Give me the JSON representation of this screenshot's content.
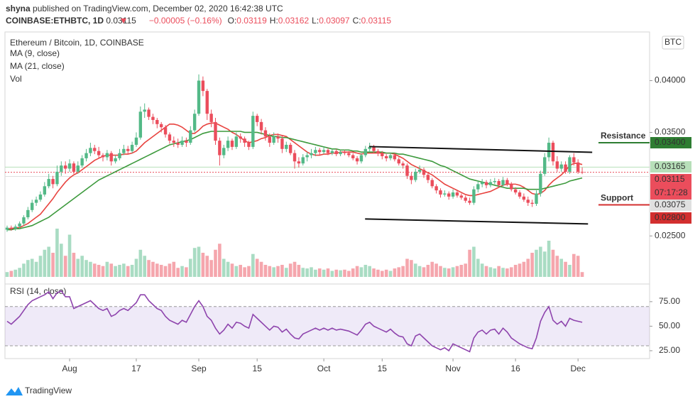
{
  "header": {
    "user": "shyna",
    "published": "published on TradingView.com, December 02, 2020 16:42:38 UTC",
    "symbol": "COINBASE:ETHBTC, 1D",
    "last": "0.03115",
    "change": "−0.00005 (−0.16%)",
    "ohlc": [
      {
        "key": "O:",
        "value": "0.03119"
      },
      {
        "key": "H:",
        "value": "0.03162"
      },
      {
        "key": "L:",
        "value": "0.03097"
      },
      {
        "key": "C:",
        "value": "0.03115"
      }
    ]
  },
  "footer": {
    "brand": "TradingView"
  },
  "chart_data": {
    "type": "candlestick",
    "title": "Ethereum / Bitcoin, 1D, COINBASE",
    "currency": "BTC",
    "up_color": "#53b987",
    "down_color": "#eb4d5c",
    "open": [
      0.0256,
      0.0258,
      0.0257,
      0.0259,
      0.0262,
      0.0268,
      0.0275,
      0.0282,
      0.0285,
      0.029,
      0.0298,
      0.0305,
      0.03,
      0.0312,
      0.0318,
      0.0315,
      0.032,
      0.0312,
      0.0318,
      0.0325,
      0.033,
      0.0335,
      0.0332,
      0.0328,
      0.0326,
      0.033,
      0.0322,
      0.0325,
      0.033,
      0.0334,
      0.0332,
      0.0338,
      0.0345,
      0.037,
      0.0372,
      0.0365,
      0.0362,
      0.0358,
      0.0355,
      0.0348,
      0.0342,
      0.034,
      0.0338,
      0.0342,
      0.034,
      0.0352,
      0.0368,
      0.04,
      0.039,
      0.0368,
      0.036,
      0.0342,
      0.0328,
      0.0335,
      0.0342,
      0.0336,
      0.0346,
      0.0344,
      0.034,
      0.0336,
      0.0366,
      0.036,
      0.0352,
      0.0346,
      0.034,
      0.0346,
      0.0344,
      0.0334,
      0.0338,
      0.033,
      0.0322,
      0.032,
      0.0326,
      0.0328,
      0.033,
      0.0333,
      0.0331,
      0.0333,
      0.033,
      0.0332,
      0.0329,
      0.0331,
      0.033,
      0.0328,
      0.0325,
      0.0322,
      0.0328,
      0.0334,
      0.0336,
      0.0332,
      0.033,
      0.0327,
      0.0325,
      0.0328,
      0.0324,
      0.032,
      0.0318,
      0.0308,
      0.0304,
      0.0312,
      0.0314,
      0.0309,
      0.0304,
      0.0298,
      0.0294,
      0.029,
      0.0291,
      0.0288,
      0.0292,
      0.0289,
      0.0287,
      0.0284,
      0.0282,
      0.0295,
      0.03,
      0.0302,
      0.0299,
      0.0302,
      0.0303,
      0.0299,
      0.0304,
      0.03,
      0.0295,
      0.0292,
      0.0288,
      0.0285,
      0.0282,
      0.0281,
      0.0291,
      0.031,
      0.0326,
      0.034,
      0.0322,
      0.0315,
      0.0319,
      0.0312,
      0.0326,
      0.0321,
      0.03119
    ],
    "high": [
      0.026,
      0.026,
      0.0261,
      0.0264,
      0.027,
      0.0278,
      0.0285,
      0.0288,
      0.0293,
      0.0302,
      0.031,
      0.0308,
      0.0318,
      0.0322,
      0.0322,
      0.0324,
      0.0322,
      0.0322,
      0.0328,
      0.0334,
      0.034,
      0.0338,
      0.0336,
      0.033,
      0.0333,
      0.0332,
      0.0328,
      0.0334,
      0.0338,
      0.0337,
      0.0341,
      0.035,
      0.0375,
      0.0378,
      0.0374,
      0.0368,
      0.0364,
      0.036,
      0.0357,
      0.035,
      0.0346,
      0.0344,
      0.0346,
      0.0345,
      0.0356,
      0.0372,
      0.0406,
      0.0404,
      0.0392,
      0.0372,
      0.0364,
      0.0345,
      0.0338,
      0.0346,
      0.0344,
      0.035,
      0.0349,
      0.0346,
      0.0342,
      0.037,
      0.0368,
      0.0363,
      0.0355,
      0.0349,
      0.035,
      0.0349,
      0.0347,
      0.0341,
      0.034,
      0.0333,
      0.0326,
      0.0329,
      0.0331,
      0.0334,
      0.0336,
      0.0335,
      0.0336,
      0.0335,
      0.0334,
      0.0334,
      0.0333,
      0.0333,
      0.0332,
      0.033,
      0.0327,
      0.033,
      0.0337,
      0.034,
      0.0338,
      0.0334,
      0.0332,
      0.0329,
      0.033,
      0.033,
      0.0326,
      0.0322,
      0.032,
      0.0311,
      0.0315,
      0.0318,
      0.0316,
      0.0311,
      0.0306,
      0.03,
      0.0296,
      0.0294,
      0.0293,
      0.0295,
      0.0294,
      0.0291,
      0.0289,
      0.0287,
      0.0298,
      0.0303,
      0.0305,
      0.0304,
      0.0305,
      0.0306,
      0.0305,
      0.0307,
      0.0306,
      0.0302,
      0.0297,
      0.0294,
      0.0291,
      0.0288,
      0.0285,
      0.0294,
      0.0313,
      0.033,
      0.0345,
      0.0342,
      0.0327,
      0.0322,
      0.0322,
      0.0328,
      0.033,
      0.0324,
      0.03162
    ],
    "low": [
      0.0254,
      0.0255,
      0.0255,
      0.0257,
      0.026,
      0.0266,
      0.0273,
      0.0279,
      0.0283,
      0.0288,
      0.0296,
      0.0296,
      0.0298,
      0.0308,
      0.031,
      0.0312,
      0.031,
      0.031,
      0.0316,
      0.0322,
      0.0327,
      0.0329,
      0.0325,
      0.0322,
      0.0323,
      0.0318,
      0.032,
      0.0323,
      0.0328,
      0.0329,
      0.033,
      0.0336,
      0.0343,
      0.0364,
      0.0362,
      0.0358,
      0.0354,
      0.035,
      0.0345,
      0.0339,
      0.0336,
      0.0335,
      0.0336,
      0.0336,
      0.0338,
      0.035,
      0.0366,
      0.0385,
      0.0362,
      0.0355,
      0.0338,
      0.0318,
      0.0325,
      0.0332,
      0.0333,
      0.0334,
      0.034,
      0.0336,
      0.0333,
      0.0334,
      0.0356,
      0.0348,
      0.0342,
      0.0336,
      0.0338,
      0.034,
      0.033,
      0.0331,
      0.0328,
      0.0315,
      0.0316,
      0.0318,
      0.0322,
      0.0325,
      0.0327,
      0.0328,
      0.0329,
      0.0328,
      0.0328,
      0.0327,
      0.0327,
      0.0328,
      0.0326,
      0.0323,
      0.0319,
      0.032,
      0.0326,
      0.0331,
      0.033,
      0.0327,
      0.0324,
      0.0322,
      0.0323,
      0.0322,
      0.0318,
      0.0315,
      0.0305,
      0.03,
      0.0302,
      0.031,
      0.0306,
      0.0301,
      0.0296,
      0.0291,
      0.0287,
      0.0288,
      0.0285,
      0.0286,
      0.0287,
      0.0285,
      0.0282,
      0.028,
      0.028,
      0.0292,
      0.0297,
      0.0296,
      0.0297,
      0.03,
      0.0297,
      0.0297,
      0.0298,
      0.0293,
      0.029,
      0.0286,
      0.0283,
      0.0279,
      0.0278,
      0.0279,
      0.0288,
      0.0308,
      0.0322,
      0.0318,
      0.0312,
      0.0312,
      0.031,
      0.031,
      0.0318,
      0.031,
      0.03097
    ],
    "close": [
      0.0258,
      0.0257,
      0.0259,
      0.0262,
      0.0268,
      0.0275,
      0.0282,
      0.0285,
      0.029,
      0.0298,
      0.0305,
      0.03,
      0.0312,
      0.0318,
      0.0315,
      0.032,
      0.0312,
      0.0318,
      0.0325,
      0.033,
      0.0335,
      0.0332,
      0.0328,
      0.0326,
      0.033,
      0.0322,
      0.0325,
      0.033,
      0.0334,
      0.0332,
      0.0338,
      0.0345,
      0.037,
      0.0372,
      0.0365,
      0.0362,
      0.0358,
      0.0355,
      0.0348,
      0.0342,
      0.034,
      0.0338,
      0.0342,
      0.034,
      0.0352,
      0.0368,
      0.04,
      0.039,
      0.0368,
      0.036,
      0.0342,
      0.0328,
      0.0335,
      0.0342,
      0.0336,
      0.0346,
      0.0344,
      0.034,
      0.0336,
      0.0366,
      0.036,
      0.0352,
      0.0346,
      0.034,
      0.0346,
      0.0344,
      0.0334,
      0.0338,
      0.033,
      0.0322,
      0.032,
      0.0326,
      0.0328,
      0.033,
      0.0333,
      0.0331,
      0.0333,
      0.033,
      0.0332,
      0.0329,
      0.0331,
      0.033,
      0.0328,
      0.0325,
      0.0322,
      0.0328,
      0.0334,
      0.0336,
      0.0332,
      0.033,
      0.0327,
      0.0325,
      0.0328,
      0.0324,
      0.032,
      0.0318,
      0.0308,
      0.0304,
      0.0312,
      0.0314,
      0.0309,
      0.0304,
      0.0298,
      0.0294,
      0.029,
      0.0291,
      0.0288,
      0.0292,
      0.0289,
      0.0287,
      0.0284,
      0.0282,
      0.0295,
      0.03,
      0.0302,
      0.0299,
      0.0302,
      0.0303,
      0.0299,
      0.0304,
      0.03,
      0.0295,
      0.0292,
      0.0288,
      0.0285,
      0.0282,
      0.0281,
      0.0291,
      0.031,
      0.0326,
      0.034,
      0.0322,
      0.0315,
      0.0319,
      0.0312,
      0.0326,
      0.0321,
      0.0312,
      0.03115
    ],
    "series": [
      {
        "name": "MA (9, close)",
        "color": "#e8433f",
        "values": [
          0.0257,
          0.0257,
          0.0258,
          0.0258,
          0.026,
          0.0262,
          0.0265,
          0.0268,
          0.0271,
          0.0276,
          0.0281,
          0.0286,
          0.0292,
          0.0297,
          0.0302,
          0.0306,
          0.0309,
          0.0311,
          0.0314,
          0.0317,
          0.032,
          0.0323,
          0.0325,
          0.0327,
          0.0328,
          0.0328,
          0.0328,
          0.0328,
          0.0329,
          0.0329,
          0.033,
          0.0332,
          0.0336,
          0.034,
          0.0343,
          0.0346,
          0.0349,
          0.0352,
          0.0355,
          0.0358,
          0.0358,
          0.0357,
          0.0355,
          0.0352,
          0.0349,
          0.0349,
          0.0352,
          0.0356,
          0.0358,
          0.0359,
          0.0359,
          0.0357,
          0.0355,
          0.0353,
          0.035,
          0.0348,
          0.0345,
          0.0342,
          0.034,
          0.0341,
          0.0342,
          0.0344,
          0.0345,
          0.0347,
          0.0348,
          0.0348,
          0.0347,
          0.0346,
          0.0343,
          0.034,
          0.0337,
          0.0334,
          0.0331,
          0.0329,
          0.0328,
          0.0328,
          0.0329,
          0.0329,
          0.033,
          0.033,
          0.0331,
          0.0331,
          0.0331,
          0.0331,
          0.033,
          0.0329,
          0.033,
          0.033,
          0.033,
          0.033,
          0.033,
          0.033,
          0.033,
          0.0329,
          0.0327,
          0.0325,
          0.0322,
          0.0319,
          0.0317,
          0.0315,
          0.0313,
          0.0311,
          0.0309,
          0.0306,
          0.0303,
          0.03,
          0.0298,
          0.0296,
          0.0294,
          0.0292,
          0.029,
          0.0289,
          0.0289,
          0.029,
          0.0291,
          0.0292,
          0.0293,
          0.0295,
          0.0297,
          0.0299,
          0.03,
          0.03,
          0.03,
          0.0299,
          0.0297,
          0.0294,
          0.0291,
          0.029,
          0.0291,
          0.0294,
          0.0299,
          0.0303,
          0.0306,
          0.0309,
          0.0313,
          0.0318,
          0.032,
          0.032,
          0.0319
        ]
      },
      {
        "name": "MA (21, close)",
        "color": "#3d9a3d",
        "values": [
          0.0256,
          0.0256,
          0.0257,
          0.0257,
          0.0258,
          0.0259,
          0.026,
          0.0262,
          0.0264,
          0.0266,
          0.0268,
          0.0271,
          0.0274,
          0.0277,
          0.028,
          0.0283,
          0.0286,
          0.0289,
          0.0292,
          0.0295,
          0.0298,
          0.0301,
          0.0304,
          0.0306,
          0.0308,
          0.031,
          0.0312,
          0.0314,
          0.0316,
          0.0318,
          0.032,
          0.0322,
          0.0324,
          0.0326,
          0.0328,
          0.033,
          0.0332,
          0.0334,
          0.0336,
          0.0338,
          0.0339,
          0.034,
          0.0341,
          0.0342,
          0.0343,
          0.0345,
          0.0347,
          0.0349,
          0.035,
          0.0351,
          0.0351,
          0.0351,
          0.0351,
          0.0351,
          0.0351,
          0.0351,
          0.0351,
          0.035,
          0.035,
          0.035,
          0.035,
          0.0349,
          0.0348,
          0.0347,
          0.0346,
          0.0346,
          0.0345,
          0.0345,
          0.0344,
          0.0343,
          0.0342,
          0.0341,
          0.034,
          0.0339,
          0.0338,
          0.0337,
          0.0336,
          0.0335,
          0.0334,
          0.0334,
          0.0333,
          0.0333,
          0.0333,
          0.0332,
          0.0332,
          0.0331,
          0.0331,
          0.0331,
          0.0331,
          0.0331,
          0.0331,
          0.033,
          0.033,
          0.033,
          0.0329,
          0.0329,
          0.0328,
          0.0327,
          0.0326,
          0.0325,
          0.0324,
          0.0323,
          0.0322,
          0.032,
          0.0318,
          0.0317,
          0.0315,
          0.0313,
          0.0311,
          0.0309,
          0.0307,
          0.0305,
          0.0304,
          0.0303,
          0.0302,
          0.0301,
          0.03,
          0.0299,
          0.0298,
          0.0297,
          0.0296,
          0.0296,
          0.0296,
          0.0296,
          0.0296,
          0.0295,
          0.0295,
          0.0295,
          0.0295,
          0.0296,
          0.0297,
          0.0298,
          0.0299,
          0.03,
          0.0301,
          0.0303,
          0.0304,
          0.0305,
          0.0306
        ]
      }
    ],
    "volume": {
      "name": "Vol",
      "ylim": [
        0,
        100
      ],
      "values": [
        8,
        10,
        12,
        15,
        22,
        28,
        30,
        25,
        35,
        45,
        50,
        40,
        80,
        55,
        35,
        70,
        40,
        30,
        35,
        28,
        25,
        22,
        20,
        18,
        25,
        22,
        18,
        20,
        22,
        18,
        20,
        30,
        45,
        35,
        28,
        25,
        22,
        20,
        18,
        22,
        25,
        15,
        18,
        16,
        30,
        48,
        50,
        40,
        35,
        28,
        45,
        55,
        30,
        25,
        22,
        18,
        20,
        16,
        18,
        38,
        30,
        25,
        20,
        18,
        16,
        18,
        20,
        15,
        22,
        25,
        20,
        15,
        14,
        16,
        12,
        14,
        12,
        14,
        10,
        12,
        11,
        12,
        10,
        14,
        18,
        16,
        20,
        18,
        14,
        12,
        10,
        12,
        10,
        14,
        16,
        18,
        30,
        28,
        22,
        18,
        16,
        20,
        25,
        22,
        18,
        15,
        14,
        16,
        18,
        20,
        22,
        45,
        50,
        30,
        22,
        18,
        16,
        14,
        18,
        15,
        14,
        16,
        20,
        22,
        25,
        30,
        40,
        45,
        50,
        42,
        60,
        45,
        35,
        30,
        25,
        20,
        38,
        35,
        8
      ]
    },
    "xticks": [
      {
        "value": 15,
        "label": "Aug"
      },
      {
        "value": 31,
        "label": "17"
      },
      {
        "value": 46,
        "label": "Sep"
      },
      {
        "value": 60,
        "label": "15"
      },
      {
        "value": 76,
        "label": "Oct"
      },
      {
        "value": 90,
        "label": "15"
      },
      {
        "value": 107,
        "label": "Nov"
      },
      {
        "value": 122,
        "label": "16"
      },
      {
        "value": 137,
        "label": "Dec"
      }
    ],
    "ylim": [
      0.0207,
      0.0447
    ],
    "yticks": [
      {
        "value": 0.04,
        "label": "0.04000"
      },
      {
        "value": 0.035,
        "label": "0.03500"
      },
      {
        "value": 0.025,
        "label": "0.02500"
      }
    ],
    "price_labels": [
      {
        "value": 0.03165,
        "label": "0.03165",
        "color": "#b7dfb9"
      },
      {
        "value": 0.03115,
        "label": "0.03115",
        "color": "#eb4d5c",
        "countdown": "07:17:28"
      },
      {
        "value": 0.03075,
        "label": "0.03075",
        "color": "#e0e0e0"
      }
    ],
    "levels": [
      {
        "name": "Resistance",
        "value": 0.034,
        "label": "0.03400",
        "color": "#2e7d32",
        "text_color": "#e53935"
      },
      {
        "name": "Support",
        "value": 0.028,
        "label": "0.02800",
        "color": "#d32f2f",
        "text_color": "#1a237e"
      }
    ],
    "channel": [
      {
        "x": [
          86.9,
          140.4
        ],
        "values": [
          0.03363,
          0.03308
        ]
      },
      {
        "x": [
          85.9,
          139.4
        ],
        "values": [
          0.02664,
          0.02616
        ]
      }
    ],
    "rsi": {
      "name": "RSI (14, close)",
      "color": "#8e44ad",
      "ylim": [
        17,
        93
      ],
      "band": [
        30,
        70
      ],
      "yticks": [
        {
          "value": 75,
          "label": "75.00"
        },
        {
          "value": 50,
          "label": "50.00"
        },
        {
          "value": 25,
          "label": "25.00"
        }
      ],
      "values": [
        55,
        52,
        56,
        60,
        66,
        72,
        76,
        78,
        80,
        82,
        85,
        78,
        84,
        86,
        80,
        80,
        68,
        70,
        72,
        74,
        76,
        72,
        68,
        66,
        68,
        60,
        62,
        66,
        68,
        66,
        70,
        74,
        82,
        82,
        76,
        72,
        68,
        66,
        60,
        56,
        54,
        52,
        56,
        54,
        62,
        70,
        76,
        70,
        60,
        56,
        48,
        42,
        46,
        52,
        48,
        54,
        53,
        50,
        48,
        62,
        58,
        54,
        50,
        46,
        50,
        49,
        44,
        47,
        42,
        38,
        37,
        42,
        44,
        46,
        48,
        46,
        48,
        46,
        48,
        46,
        47,
        46,
        45,
        43,
        41,
        46,
        52,
        54,
        50,
        48,
        46,
        44,
        47,
        43,
        40,
        39,
        32,
        30,
        40,
        42,
        38,
        34,
        30,
        28,
        26,
        28,
        25,
        32,
        30,
        28,
        26,
        24,
        38,
        44,
        46,
        42,
        46,
        47,
        42,
        48,
        44,
        38,
        35,
        32,
        30,
        28,
        27,
        38,
        55,
        64,
        70,
        56,
        52,
        55,
        50,
        58,
        56,
        55,
        54
      ]
    }
  }
}
